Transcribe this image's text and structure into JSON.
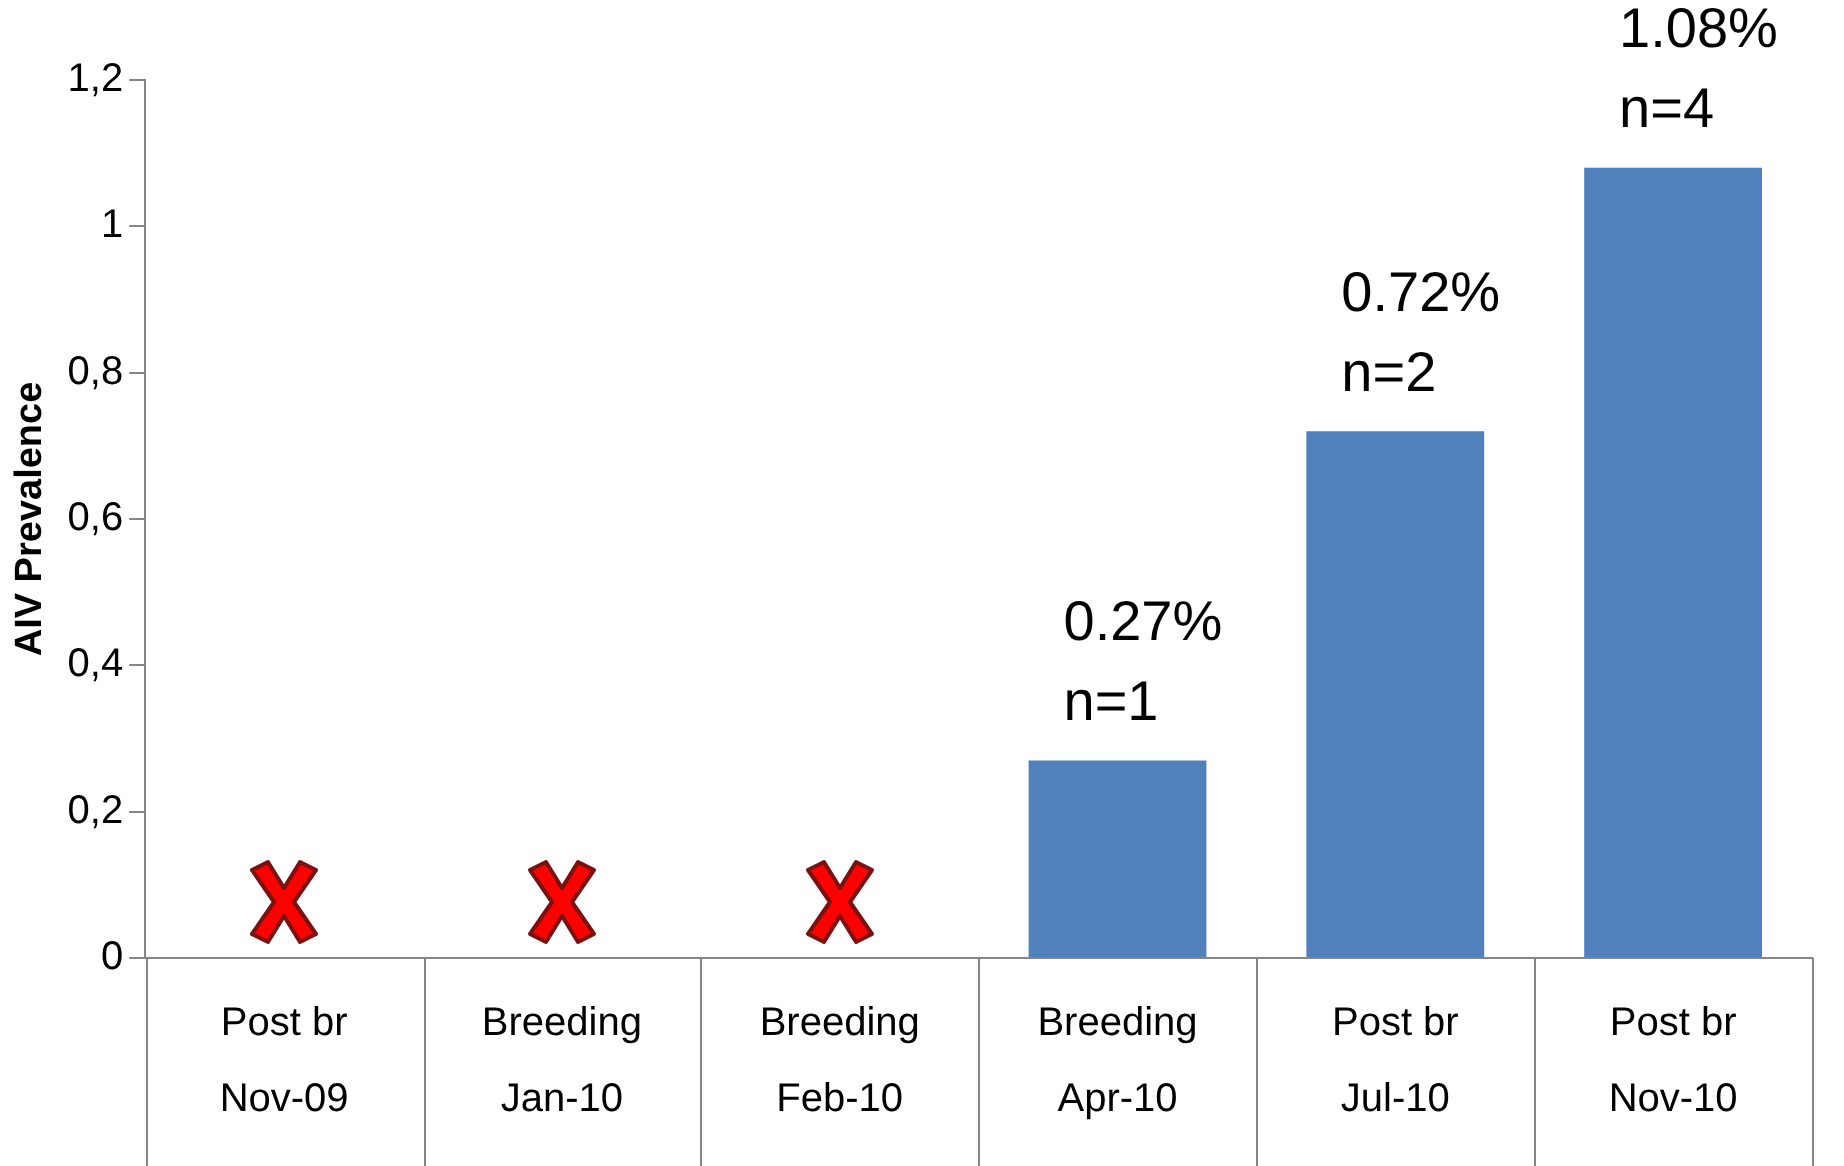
{
  "chart_data": {
    "type": "bar",
    "ylabel": "AIV Prevalence",
    "categories": [
      "Post br\nNov-09",
      "Breeding\nJan-10",
      "Breeding\nFeb-10",
      "Breeding\nApr-10",
      "Post br\nJul-10",
      "Post br\nNov-10"
    ],
    "values": [
      0,
      0,
      0,
      0.27,
      0.72,
      1.08
    ],
    "value_labels": [
      null,
      null,
      null,
      "0.27%\nn=1",
      "0.72%\nn=2",
      "1.08%\nn=4"
    ],
    "color": "#4f81bd",
    "ylim": [
      0,
      1.2
    ],
    "yticks": [
      0,
      {
        "value": 0.2,
        "label": "0,2"
      },
      {
        "value": 0.4,
        "label": "0,4"
      },
      {
        "value": 0.6,
        "label": "0,6"
      },
      {
        "value": 0.8,
        "label": "0,8"
      },
      1,
      {
        "value": 1.2,
        "label": "1,2"
      }
    ],
    "grid": false,
    "legend": false
  }
}
